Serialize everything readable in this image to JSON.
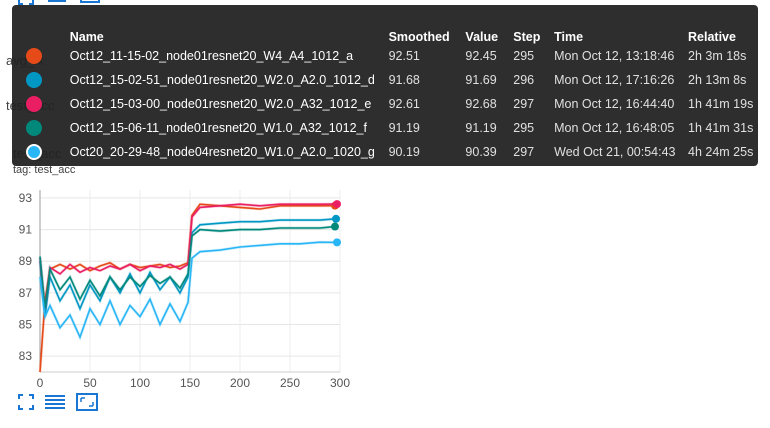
{
  "sidebar_labels": {
    "avg_loss": "avg_lx",
    "test_acc_section": "test_acc",
    "card_name": "test_acc",
    "tag": "tag: test_acc"
  },
  "tooltip": {
    "headers": {
      "name": "Name",
      "smoothed": "Smoothed",
      "value": "Value",
      "step": "Step",
      "time": "Time",
      "relative": "Relative"
    },
    "rows": [
      {
        "color": "#e64a19",
        "name": "Oct12_11-15-02_node01resnet20_W4_A4_1012_a",
        "smoothed": "92.51",
        "value": "92.45",
        "step": "295",
        "time": "Mon Oct 12, 13:18:46",
        "relative": "2h 3m 18s"
      },
      {
        "color": "#0097c4",
        "name": "Oct12_15-02-51_node01resnet20_W2.0_A2.0_1012_d",
        "smoothed": "91.68",
        "value": "91.69",
        "step": "296",
        "time": "Mon Oct 12, 17:16:26",
        "relative": "2h 13m 8s"
      },
      {
        "color": "#e91e63",
        "name": "Oct12_15-03-00_node01resnet20_W2.0_A32_1012_e",
        "smoothed": "92.61",
        "value": "92.68",
        "step": "297",
        "time": "Mon Oct 12, 16:44:40",
        "relative": "1h 41m 19s"
      },
      {
        "color": "#00897b",
        "name": "Oct12_15-06-11_node01resnet20_W1.0_A32_1012_f",
        "smoothed": "91.19",
        "value": "91.19",
        "step": "295",
        "time": "Mon Oct 12, 16:48:05",
        "relative": "1h 41m 31s"
      },
      {
        "color": "#29b6f6",
        "name": "Oct20_20-29-48_node04resnet20_W1.0_A2.0_1020_g",
        "smoothed": "90.19",
        "value": "90.39",
        "step": "297",
        "time": "Wed Oct 21, 00:54:43",
        "relative": "4h 24m 25s"
      }
    ]
  },
  "chart_data": {
    "type": "line",
    "xlabel": "",
    "ylabel": "",
    "xlim": [
      0,
      300
    ],
    "ylim": [
      82,
      93.5
    ],
    "x_ticks": [
      0,
      50,
      100,
      150,
      200,
      250,
      300
    ],
    "y_ticks": [
      83,
      85,
      87,
      89,
      91,
      93
    ],
    "grid": true,
    "legend": "tooltip-top",
    "series": [
      {
        "name": "Oct12_11-15-02_node01resnet20_W4_A4_1012_a",
        "color": "#e64a19",
        "x": [
          0,
          5,
          10,
          20,
          30,
          40,
          50,
          60,
          70,
          80,
          90,
          100,
          110,
          120,
          130,
          140,
          148,
          152,
          160,
          180,
          200,
          220,
          240,
          260,
          280,
          295
        ],
        "y": [
          82.0,
          86.5,
          88.5,
          88.8,
          88.5,
          88.8,
          88.4,
          88.7,
          88.9,
          88.5,
          88.8,
          88.6,
          88.7,
          88.8,
          88.6,
          88.7,
          88.9,
          91.9,
          92.6,
          92.5,
          92.4,
          92.3,
          92.5,
          92.5,
          92.5,
          92.51
        ]
      },
      {
        "name": "Oct12_15-02-51_node01resnet20_W2.0_A2.0_1012_d",
        "color": "#0097c4",
        "x": [
          0,
          5,
          10,
          20,
          30,
          40,
          50,
          60,
          70,
          80,
          90,
          100,
          110,
          120,
          130,
          140,
          148,
          152,
          160,
          180,
          200,
          220,
          240,
          260,
          280,
          296
        ],
        "y": [
          89.0,
          85.5,
          88.0,
          86.5,
          87.5,
          86.0,
          87.5,
          86.5,
          88.0,
          87.0,
          88.2,
          87.0,
          88.3,
          87.2,
          88.0,
          87.0,
          88.0,
          90.8,
          91.3,
          91.4,
          91.5,
          91.5,
          91.6,
          91.6,
          91.6,
          91.68
        ]
      },
      {
        "name": "Oct12_15-03-00_node01resnet20_W2.0_A32_1012_e",
        "color": "#e91e63",
        "x": [
          0,
          5,
          10,
          20,
          30,
          40,
          50,
          60,
          70,
          80,
          90,
          100,
          110,
          120,
          130,
          140,
          148,
          152,
          160,
          180,
          200,
          220,
          240,
          260,
          280,
          297
        ],
        "y": [
          89.2,
          86.0,
          88.6,
          88.2,
          88.8,
          88.3,
          88.6,
          88.4,
          88.7,
          88.5,
          88.8,
          88.4,
          88.7,
          88.6,
          88.8,
          88.5,
          88.8,
          91.8,
          92.4,
          92.5,
          92.6,
          92.5,
          92.6,
          92.6,
          92.6,
          92.61
        ]
      },
      {
        "name": "Oct12_15-06-11_node01resnet20_W1.0_A32_1012_f",
        "color": "#00897b",
        "x": [
          0,
          5,
          10,
          20,
          30,
          40,
          50,
          60,
          70,
          80,
          90,
          100,
          110,
          120,
          130,
          140,
          148,
          152,
          160,
          180,
          200,
          220,
          240,
          260,
          280,
          295
        ],
        "y": [
          89.3,
          86.0,
          88.5,
          87.2,
          88.0,
          86.6,
          87.8,
          86.8,
          88.0,
          87.2,
          88.0,
          87.4,
          88.1,
          87.6,
          88.0,
          87.3,
          88.2,
          90.6,
          91.0,
          90.9,
          91.0,
          91.0,
          91.1,
          91.1,
          91.1,
          91.19
        ]
      },
      {
        "name": "Oct20_20-29-48_node04resnet20_W1.0_A2.0_1020_g",
        "color": "#29b6f6",
        "x": [
          0,
          5,
          10,
          20,
          30,
          40,
          50,
          60,
          70,
          80,
          90,
          100,
          110,
          120,
          130,
          140,
          148,
          152,
          160,
          180,
          200,
          220,
          240,
          260,
          280,
          297
        ],
        "y": [
          88.0,
          85.5,
          86.2,
          84.8,
          85.6,
          84.2,
          86.0,
          85.0,
          86.5,
          85.0,
          86.2,
          85.5,
          86.6,
          85.0,
          86.3,
          85.2,
          86.4,
          89.2,
          89.6,
          89.7,
          89.9,
          90.0,
          90.1,
          90.1,
          90.2,
          90.19
        ]
      }
    ]
  }
}
